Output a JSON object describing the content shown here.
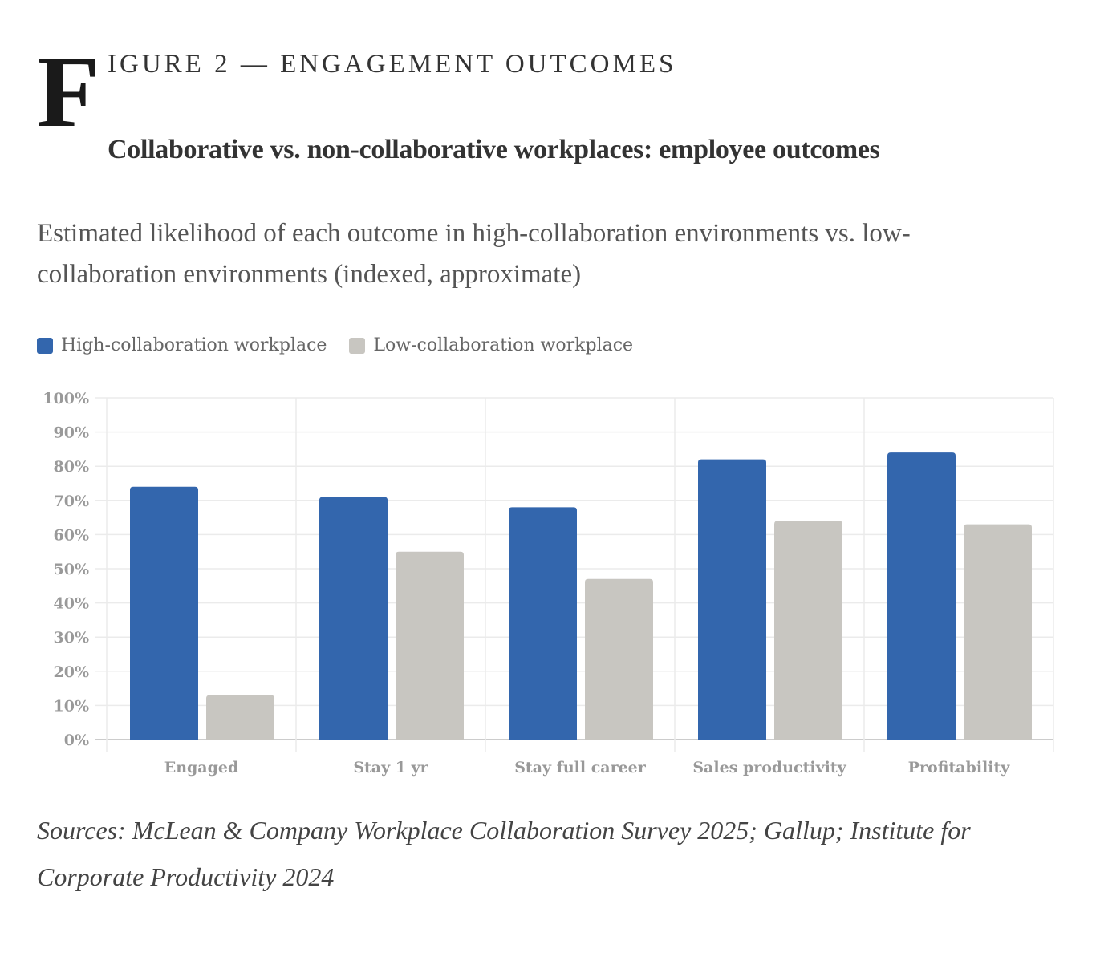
{
  "header": {
    "dropcap": "F",
    "kicker": "IGURE 2 — ENGAGEMENT OUTCOMES",
    "title": "Collaborative vs. non-collaborative workplaces: employee outcomes",
    "subtitle": "Estimated likelihood of each outcome in high-collaboration environments vs. low-collaboration environments (indexed, approximate)"
  },
  "source": "Sources: McLean & Company Workplace Collaboration Survey 2025; Gallup; Institute for Corporate Productivity 2024",
  "chart_data": {
    "type": "bar",
    "categories": [
      "Engaged",
      "Stay 1 yr",
      "Stay full career",
      "Sales productivity",
      "Profitability"
    ],
    "series": [
      {
        "name": "High-collaboration workplace",
        "color": "#3366ad",
        "values": [
          74,
          71,
          68,
          82,
          84
        ]
      },
      {
        "name": "Low-collaboration workplace",
        "color": "#c8c6c1",
        "values": [
          13,
          55,
          47,
          64,
          63
        ]
      }
    ],
    "ylim": [
      0,
      100
    ],
    "yticks": [
      "0%",
      "10%",
      "20%",
      "30%",
      "40%",
      "50%",
      "60%",
      "70%",
      "80%",
      "90%",
      "100%"
    ],
    "grid": true,
    "legend": "top-left"
  }
}
